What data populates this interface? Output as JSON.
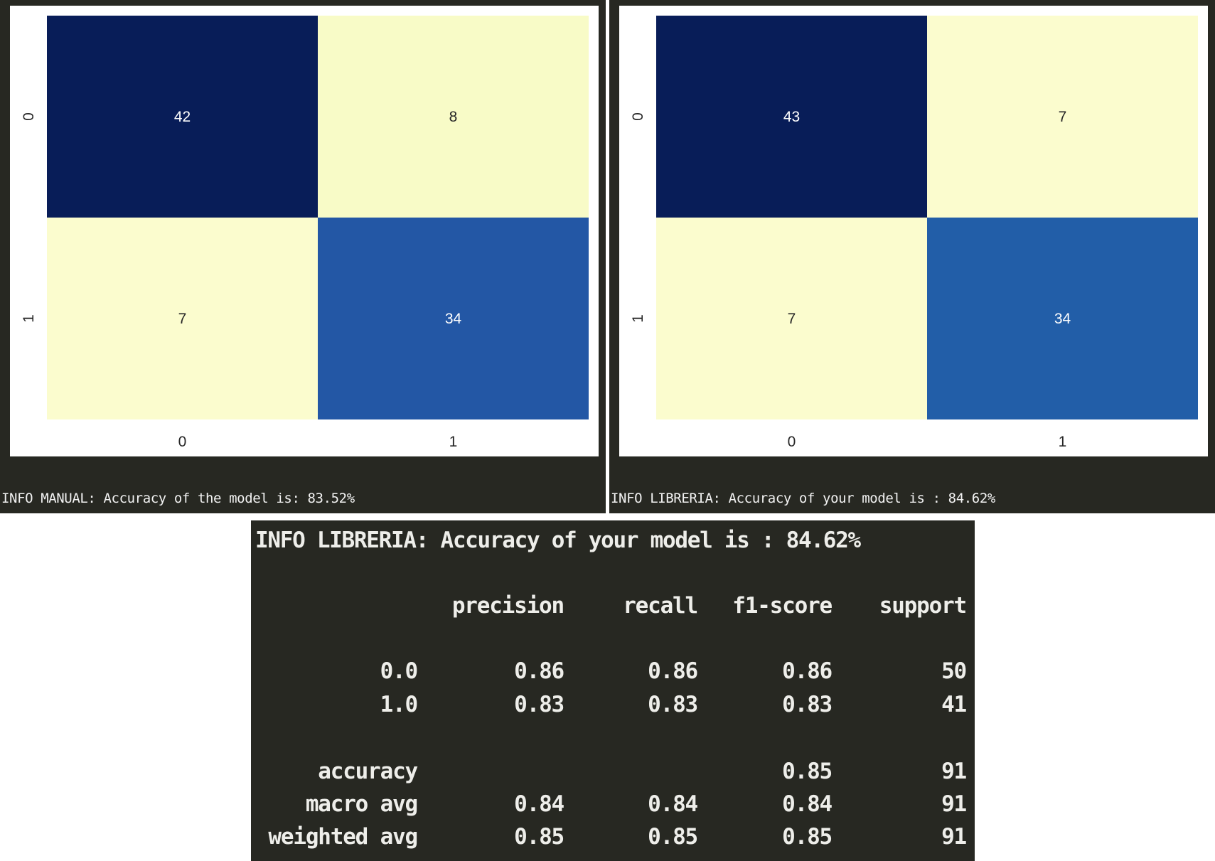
{
  "chart_data": [
    {
      "type": "heatmap",
      "x_categories": [
        "0",
        "1"
      ],
      "y_categories": [
        "0",
        "1"
      ],
      "values": [
        [
          42,
          8
        ],
        [
          7,
          34
        ]
      ],
      "colormap": "YlGnBu",
      "vmin": 7,
      "vmax": 42,
      "colorbar": false
    },
    {
      "type": "heatmap",
      "x_categories": [
        "0",
        "1"
      ],
      "y_categories": [
        "0",
        "1"
      ],
      "values": [
        [
          43,
          7
        ],
        [
          7,
          34
        ]
      ],
      "colormap": "YlGnBu",
      "vmin": 7,
      "vmax": 43,
      "colorbar": false
    }
  ],
  "captions": {
    "left": "INFO MANUAL: Accuracy of the model is: 83.52%",
    "right": "INFO LIBRERIA: Accuracy of your model is : 84.62%"
  },
  "report": {
    "title": "INFO LIBRERIA: Accuracy of your model is : 84.62%",
    "headers": [
      "precision",
      "recall",
      "f1-score",
      "support"
    ],
    "rows": [
      {
        "label": "0.0",
        "precision": "0.86",
        "recall": "0.86",
        "f1": "0.86",
        "support": "50"
      },
      {
        "label": "1.0",
        "precision": "0.83",
        "recall": "0.83",
        "f1": "0.83",
        "support": "41"
      },
      {
        "label": "accuracy",
        "precision": "",
        "recall": "",
        "f1": "0.85",
        "support": "91"
      },
      {
        "label": "macro avg",
        "precision": "0.84",
        "recall": "0.84",
        "f1": "0.84",
        "support": "91"
      },
      {
        "label": "weighted avg",
        "precision": "0.85",
        "recall": "0.85",
        "f1": "0.85",
        "support": "91"
      }
    ]
  },
  "colors": {
    "background_dark": "#272822",
    "text_light": "#eeeeea",
    "cmap_low": "#fbfcce",
    "cmap_high": "#081d58",
    "cmap_mid": "#2255a4"
  }
}
